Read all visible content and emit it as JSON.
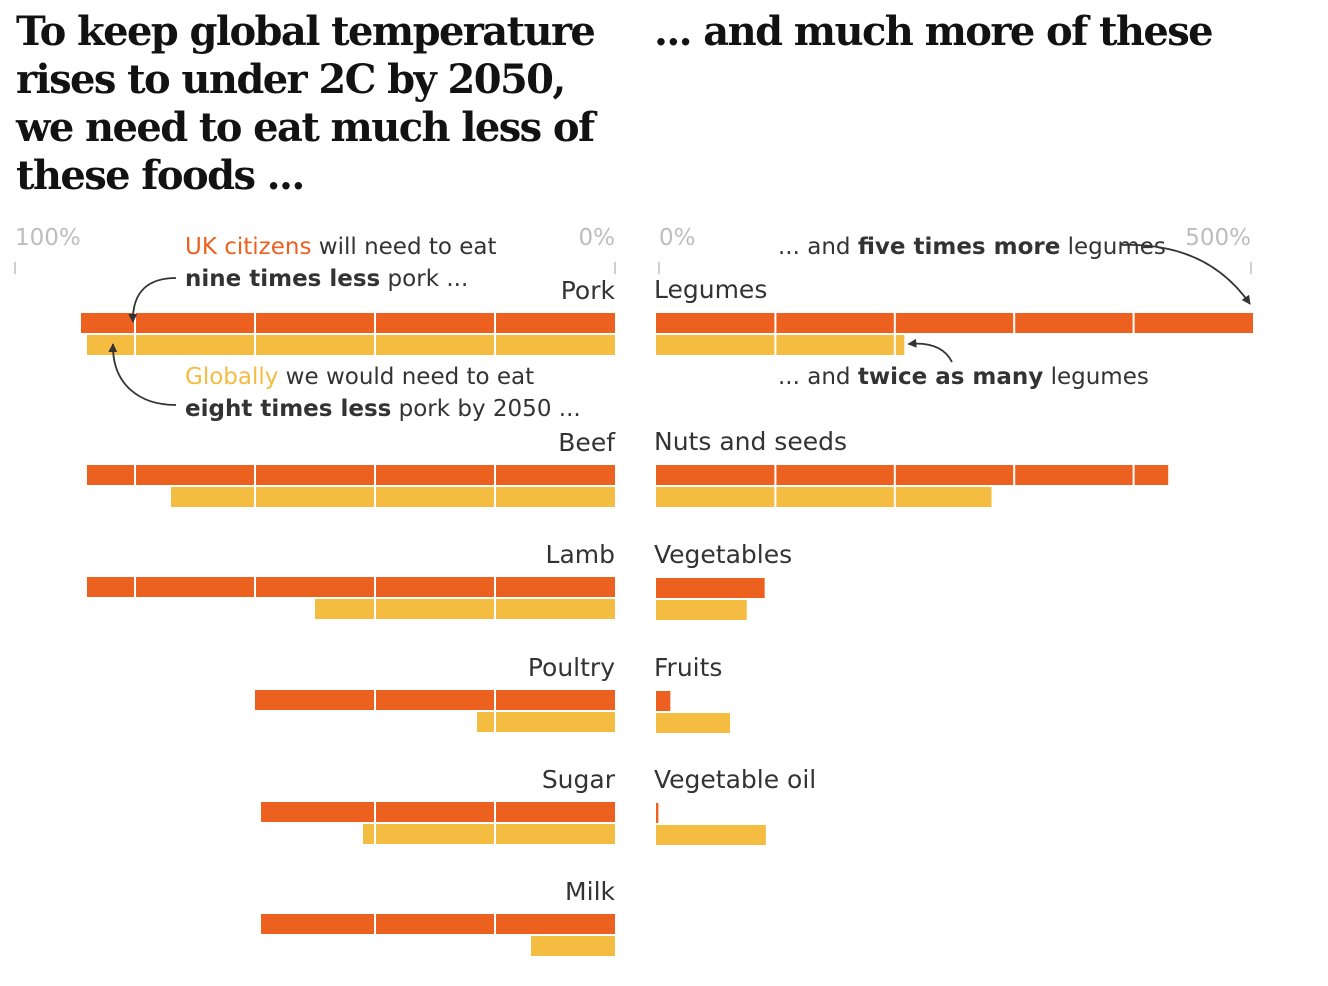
{
  "titles": {
    "left": "To keep global temperature rises to under 2C by 2050, we need to eat much less of these foods ...",
    "right": "... and much more of these"
  },
  "colors": {
    "uk": "#ec6120",
    "global": "#f4bc40",
    "divider": "#ffffff",
    "text": "#333333",
    "axis": "#bdbdbd",
    "arrow": "#333333"
  },
  "annotations": {
    "uk_left": [
      [
        {
          "t": "UK citizens",
          "c": "uk"
        },
        {
          "t": " will need to eat"
        }
      ],
      [
        {
          "t": "nine times less",
          "b": true
        },
        {
          "t": " pork ..."
        }
      ]
    ],
    "global_left": [
      [
        {
          "t": "Globally",
          "c": "global"
        },
        {
          "t": " we would need to eat"
        }
      ],
      [
        {
          "t": "eight times less",
          "b": true
        },
        {
          "t": " pork by 2050 ..."
        }
      ]
    ],
    "uk_right": [
      [
        {
          "t": "... and "
        },
        {
          "t": "five times more",
          "b": true
        },
        {
          "t": " legumes"
        }
      ]
    ],
    "global_right": [
      [
        {
          "t": "... and "
        },
        {
          "t": "twice as many",
          "b": true
        },
        {
          "t": " legumes"
        }
      ]
    ]
  },
  "chart_data": [
    {
      "type": "bar",
      "orientation": "horizontal",
      "panel": "eat less",
      "axis_ticks": [
        "100%",
        "0%"
      ],
      "xlim": [
        100,
        0
      ],
      "categories": [
        "Pork",
        "Beef",
        "Lamb",
        "Poultry",
        "Sugar",
        "Milk"
      ],
      "series": [
        {
          "name": "UK citizens",
          "values": [
            89,
            88,
            88,
            60,
            59,
            59
          ]
        },
        {
          "name": "Globally",
          "values": [
            88,
            74,
            50,
            23,
            42,
            14
          ]
        }
      ]
    },
    {
      "type": "bar",
      "orientation": "horizontal",
      "panel": "eat more",
      "axis_ticks": [
        "0%",
        "500%"
      ],
      "xlim": [
        0,
        500
      ],
      "categories": [
        "Legumes",
        "Nuts and seeds",
        "Vegetables",
        "Fruits",
        "Vegetable oil"
      ],
      "series": [
        {
          "name": "UK citizens",
          "values": [
            500,
            429,
            91,
            12,
            2
          ]
        },
        {
          "name": "Globally",
          "values": [
            208,
            281,
            76,
            62,
            92
          ]
        }
      ]
    }
  ]
}
